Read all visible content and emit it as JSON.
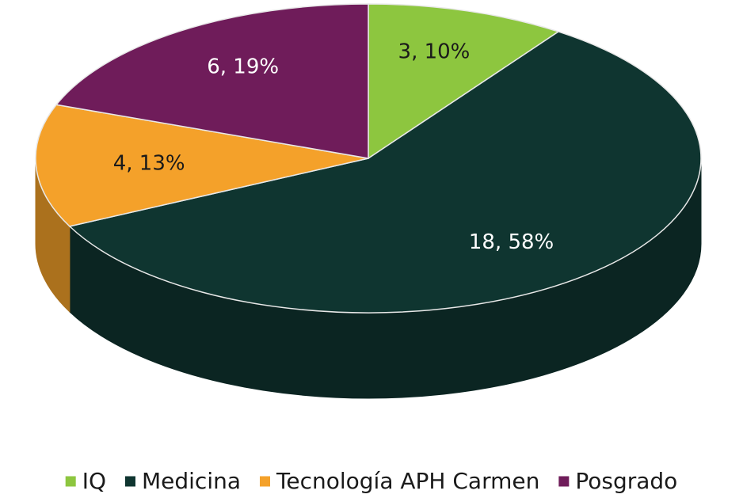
{
  "chart_data": {
    "type": "pie",
    "categories": [
      "IQ",
      "Medicina",
      "Tecnología APH Carmen",
      "Posgrado"
    ],
    "values": [
      3,
      18,
      4,
      6
    ],
    "value_labels": [
      "3, 10%",
      "18, 58%",
      "4, 13%",
      "6, 19%"
    ],
    "colors": [
      "#8dc63f",
      "#0f3530",
      "#f4a12a",
      "#6f1c5a"
    ],
    "legend": "bottom"
  }
}
